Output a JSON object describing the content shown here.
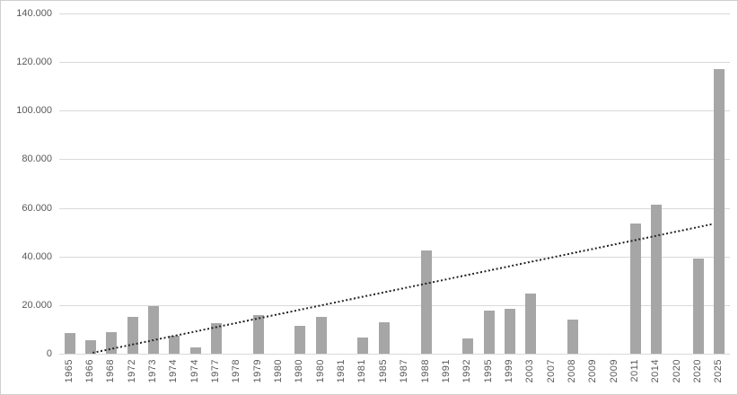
{
  "chart_data": {
    "type": "bar",
    "title": "",
    "xlabel": "",
    "ylabel": "",
    "categories": [
      "1965",
      "1966",
      "1968",
      "1972",
      "1973",
      "1974",
      "1974",
      "1977",
      "1978",
      "1979",
      "1980",
      "1980",
      "1980",
      "1981",
      "1981",
      "1985",
      "1987",
      "1988",
      "1991",
      "1992",
      "1995",
      "1999",
      "2003",
      "2007",
      "2008",
      "2009",
      "2009",
      "2011",
      "2014",
      "2020",
      "2020",
      "2025"
    ],
    "values": [
      8500,
      5500,
      9000,
      15000,
      19700,
      7400,
      2700,
      12500,
      0,
      15700,
      0,
      11400,
      15100,
      0,
      6500,
      12800,
      0,
      42300,
      0,
      6300,
      17700,
      18300,
      24800,
      0,
      14000,
      0,
      0,
      53500,
      61500,
      0,
      39000,
      117000
    ],
    "ylim": [
      0,
      140000
    ],
    "ytick_step": 20000,
    "ytick_labels": [
      "0",
      "20.000",
      "40.000",
      "60.000",
      "80.000",
      "100.000",
      "120.000",
      "140.000"
    ],
    "grid": true,
    "legend": "none",
    "colors": {
      "bar": "#a6a6a6",
      "gridline": "#d9d9d9",
      "axis_text": "#595959",
      "trendline": "#262626",
      "background": "#ffffff"
    },
    "trendline": {
      "style": "dotted",
      "start_index": 1.1,
      "start_value": 0,
      "end_index": 30.7,
      "end_value": 53000
    }
  }
}
